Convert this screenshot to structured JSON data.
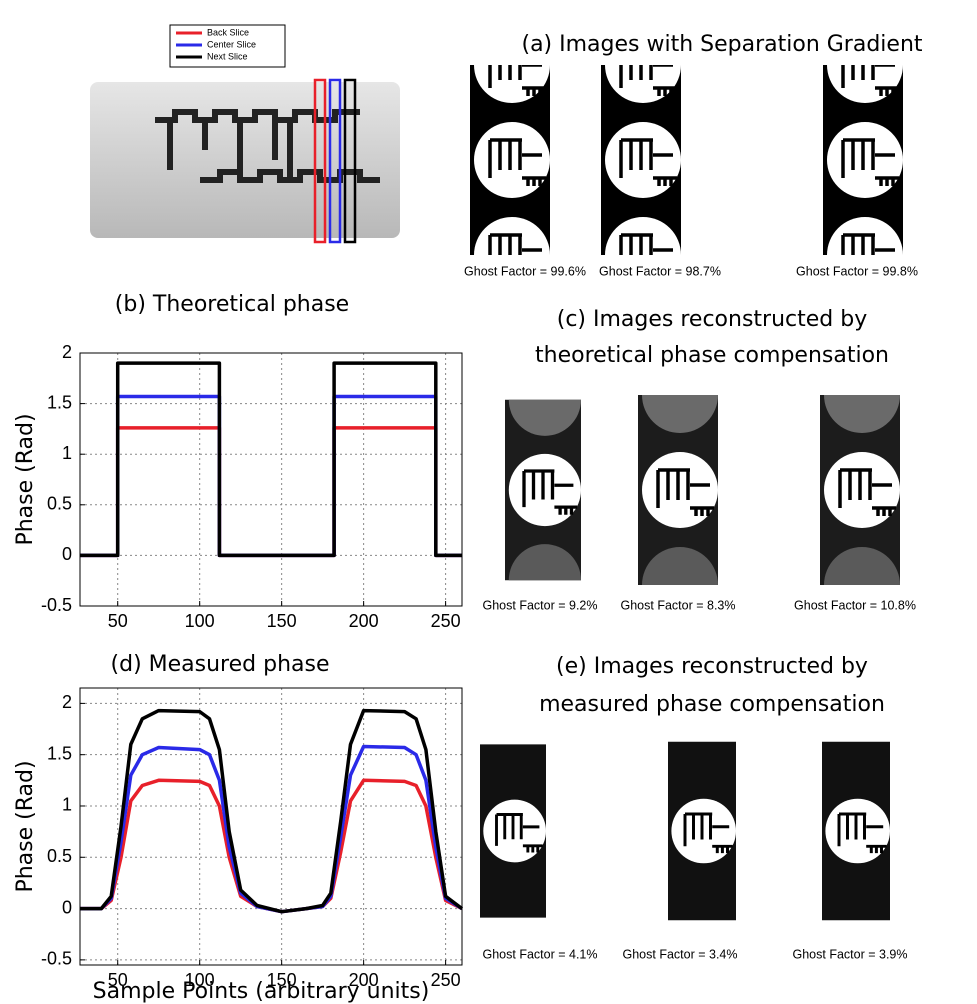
{
  "panels": [
    {
      "title_lines": [
        "(a) Images with Separation Gradient"
      ],
      "captions": [
        "Ghost Factor = 99.6%",
        "Ghost Factor = 98.7%",
        "Ghost Factor = 99.8%"
      ]
    },
    {
      "title_lines": [
        "(c) Images reconstructed by",
        "theoretical phase compensation"
      ],
      "captions": [
        "Ghost Factor = 9.2%",
        "Ghost Factor = 8.3%",
        "Ghost Factor = 10.8%"
      ]
    },
    {
      "title_lines": [
        "(e) Images reconstructed by",
        "measured phase compensation"
      ],
      "captions": [
        "Ghost Factor = 4.1%",
        "Ghost Factor = 3.4%",
        "Ghost Factor = 3.9%"
      ]
    }
  ],
  "chart_data": [
    {
      "type": "line",
      "title": "(b) Theoretical phase",
      "y_label": "Phase (Rad)",
      "xlim": [
        27,
        260
      ],
      "ylim": [
        -0.5,
        2
      ],
      "xticks": [
        50,
        100,
        150,
        200,
        250
      ],
      "yticks": [
        -0.5,
        0,
        0.5,
        1,
        1.5,
        2
      ],
      "grid": true,
      "x": [
        27,
        50,
        50,
        112,
        112,
        182,
        182,
        244,
        244,
        260
      ],
      "series": [
        {
          "name": "Back Slice",
          "color": "#e8202a",
          "values": [
            0,
            0,
            1.26,
            1.26,
            0,
            0,
            1.26,
            1.26,
            0,
            0
          ]
        },
        {
          "name": "Center Slice",
          "color": "#2a2ae8",
          "values": [
            0,
            0,
            1.57,
            1.57,
            0,
            0,
            1.57,
            1.57,
            0,
            0
          ]
        },
        {
          "name": "Next Slice",
          "color": "#000000",
          "values": [
            0,
            0,
            1.9,
            1.9,
            0,
            0,
            1.9,
            1.9,
            0,
            0
          ]
        }
      ]
    },
    {
      "type": "line",
      "title": "(d) Measured phase",
      "y_label": "Phase (Rad)",
      "x_label": "Sample Points (arbitrary units)",
      "xlim": [
        27,
        260
      ],
      "ylim": [
        -0.55,
        2.15
      ],
      "xticks": [
        50,
        100,
        150,
        200,
        250
      ],
      "yticks": [
        -0.5,
        0,
        0.5,
        1,
        1.5,
        2
      ],
      "grid": true,
      "x": [
        27,
        40,
        46,
        52,
        58,
        65,
        75,
        100,
        106,
        112,
        118,
        125,
        135,
        150,
        165,
        175,
        180,
        186,
        192,
        200,
        225,
        232,
        238,
        244,
        250,
        260
      ],
      "series": [
        {
          "color": "#e8202a",
          "values": [
            0,
            0,
            0.08,
            0.5,
            1.05,
            1.2,
            1.25,
            1.24,
            1.2,
            1.0,
            0.5,
            0.12,
            0.02,
            -0.03,
            0,
            0.02,
            0.1,
            0.55,
            1.05,
            1.25,
            1.24,
            1.2,
            1.0,
            0.5,
            0.08,
            0
          ]
        },
        {
          "color": "#2a2ae8",
          "values": [
            0,
            0,
            0.1,
            0.65,
            1.3,
            1.5,
            1.57,
            1.55,
            1.5,
            1.25,
            0.6,
            0.15,
            0.02,
            -0.03,
            0,
            0.02,
            0.12,
            0.7,
            1.3,
            1.58,
            1.57,
            1.5,
            1.25,
            0.6,
            0.1,
            0
          ]
        },
        {
          "color": "#000000",
          "values": [
            0,
            0,
            0.12,
            0.8,
            1.6,
            1.85,
            1.93,
            1.92,
            1.85,
            1.55,
            0.75,
            0.18,
            0.03,
            -0.03,
            0,
            0.03,
            0.15,
            0.85,
            1.6,
            1.93,
            1.92,
            1.85,
            1.55,
            0.75,
            0.12,
            0
          ]
        }
      ]
    }
  ]
}
